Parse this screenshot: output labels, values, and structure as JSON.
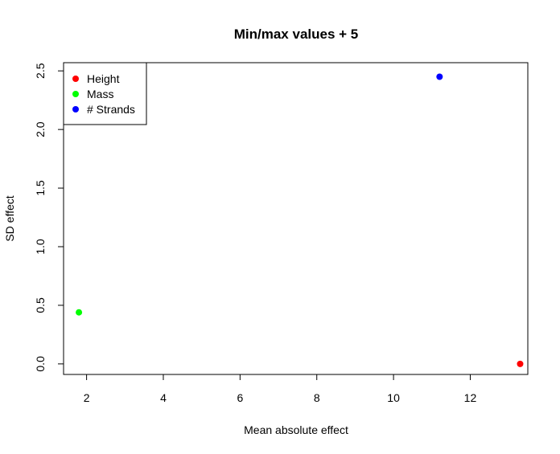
{
  "chart_data": {
    "type": "scatter",
    "title": "Min/max values + 5",
    "xlabel": "Mean absolute effect",
    "ylabel": "SD effect",
    "xlim": [
      1.4,
      13.5
    ],
    "ylim": [
      -0.09,
      2.57
    ],
    "x_ticks": [
      2,
      4,
      6,
      8,
      10,
      12
    ],
    "y_ticks": [
      0.0,
      0.5,
      1.0,
      1.5,
      2.0,
      2.5
    ],
    "x_tick_labels": [
      "2",
      "4",
      "6",
      "8",
      "10",
      "12"
    ],
    "y_tick_labels": [
      "0.0",
      "0.5",
      "1.0",
      "1.5",
      "2.0",
      "2.5"
    ],
    "legend_position": "top-left",
    "grid": false,
    "series": [
      {
        "name": "Height",
        "color": "#ff0000",
        "points": [
          [
            13.3,
            0.0
          ]
        ]
      },
      {
        "name": "Mass",
        "color": "#00ff00",
        "points": [
          [
            1.8,
            0.44
          ]
        ]
      },
      {
        "name": "# Strands",
        "color": "#0000ff",
        "points": [
          [
            11.2,
            2.45
          ]
        ]
      }
    ]
  }
}
